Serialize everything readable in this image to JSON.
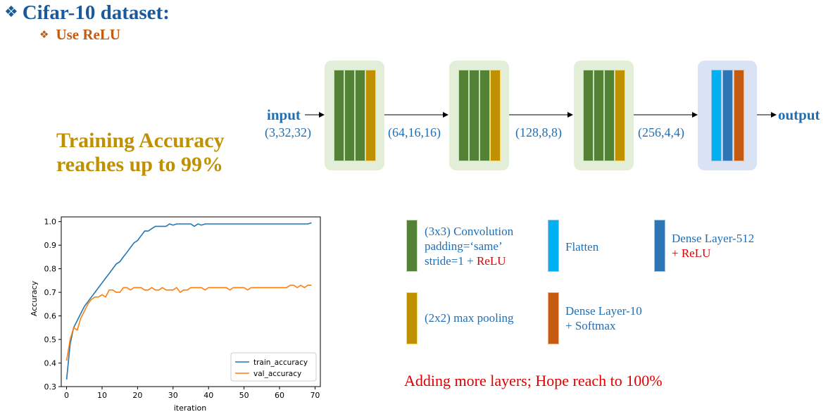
{
  "title": {
    "bullet": "❖",
    "text": "Cifar-10 dataset:"
  },
  "subtitle": {
    "bullet": "❖",
    "text": "Use ReLU"
  },
  "accuracy_note": {
    "line1": "Training Accuracy",
    "line2": "reaches up to 99%"
  },
  "diagram": {
    "input_label": "input",
    "input_shape": "(3,32,32)",
    "shape_1": "(64,16,16)",
    "shape_2": "(128,8,8)",
    "shape_3": "(256,4,4)",
    "output_label": "output"
  },
  "legend": {
    "conv": {
      "line1": "(3x3) Convolution",
      "line2": "padding=‘same’",
      "line3a": "stride=1 + ",
      "line3b": "ReLU",
      "color": "#548235"
    },
    "flatten": {
      "label": "Flatten",
      "color": "#00b0f0"
    },
    "dense512": {
      "line1": "Dense Layer-512",
      "line2": "+ ReLU",
      "color": "#2e75b6"
    },
    "pool": {
      "label": "(2x2) max pooling",
      "color": "#bf9000"
    },
    "dense10": {
      "line1": "Dense Layer-10",
      "line2": "+ Softmax",
      "color": "#c55a11"
    }
  },
  "footer_note": "Adding more layers; Hope reach to 100%",
  "chart_data": {
    "type": "line",
    "xlabel": "iteration",
    "ylabel": "Accuracy",
    "xlim": [
      0,
      70
    ],
    "ylim": [
      0.3,
      1.02
    ],
    "xticks": [
      0,
      10,
      20,
      30,
      40,
      50,
      60,
      70
    ],
    "yticks": [
      0.3,
      0.4,
      0.5,
      0.6,
      0.7,
      0.8,
      0.9,
      1.0
    ],
    "legend_position": "bottom-right",
    "grid": false,
    "series": [
      {
        "name": "train_accuracy",
        "color": "#1f77b4",
        "values": [
          0.33,
          0.48,
          0.55,
          0.58,
          0.61,
          0.64,
          0.66,
          0.68,
          0.7,
          0.72,
          0.74,
          0.76,
          0.78,
          0.8,
          0.82,
          0.83,
          0.85,
          0.87,
          0.89,
          0.91,
          0.92,
          0.94,
          0.96,
          0.96,
          0.97,
          0.98,
          0.98,
          0.98,
          0.98,
          0.99,
          0.985,
          0.99,
          0.99,
          0.99,
          0.99,
          0.99,
          0.98,
          0.99,
          0.985,
          0.99,
          0.99,
          0.99,
          0.99,
          0.99,
          0.99,
          0.99,
          0.99,
          0.99,
          0.99,
          0.99,
          0.99,
          0.99,
          0.99,
          0.99,
          0.99,
          0.99,
          0.99,
          0.99,
          0.99,
          0.99,
          0.99,
          0.99,
          0.99,
          0.99,
          0.99,
          0.99,
          0.99,
          0.99,
          0.99,
          0.995
        ]
      },
      {
        "name": "val_accuracy",
        "color": "#ff7f0e",
        "values": [
          0.41,
          0.5,
          0.55,
          0.54,
          0.59,
          0.62,
          0.65,
          0.67,
          0.68,
          0.68,
          0.69,
          0.68,
          0.71,
          0.71,
          0.7,
          0.7,
          0.72,
          0.72,
          0.71,
          0.72,
          0.72,
          0.72,
          0.71,
          0.71,
          0.72,
          0.71,
          0.71,
          0.72,
          0.71,
          0.71,
          0.71,
          0.72,
          0.7,
          0.71,
          0.71,
          0.72,
          0.72,
          0.72,
          0.72,
          0.71,
          0.72,
          0.72,
          0.72,
          0.72,
          0.72,
          0.72,
          0.71,
          0.72,
          0.72,
          0.72,
          0.72,
          0.71,
          0.72,
          0.72,
          0.72,
          0.72,
          0.72,
          0.72,
          0.72,
          0.72,
          0.72,
          0.72,
          0.72,
          0.73,
          0.73,
          0.72,
          0.73,
          0.72,
          0.73,
          0.73
        ]
      }
    ]
  }
}
